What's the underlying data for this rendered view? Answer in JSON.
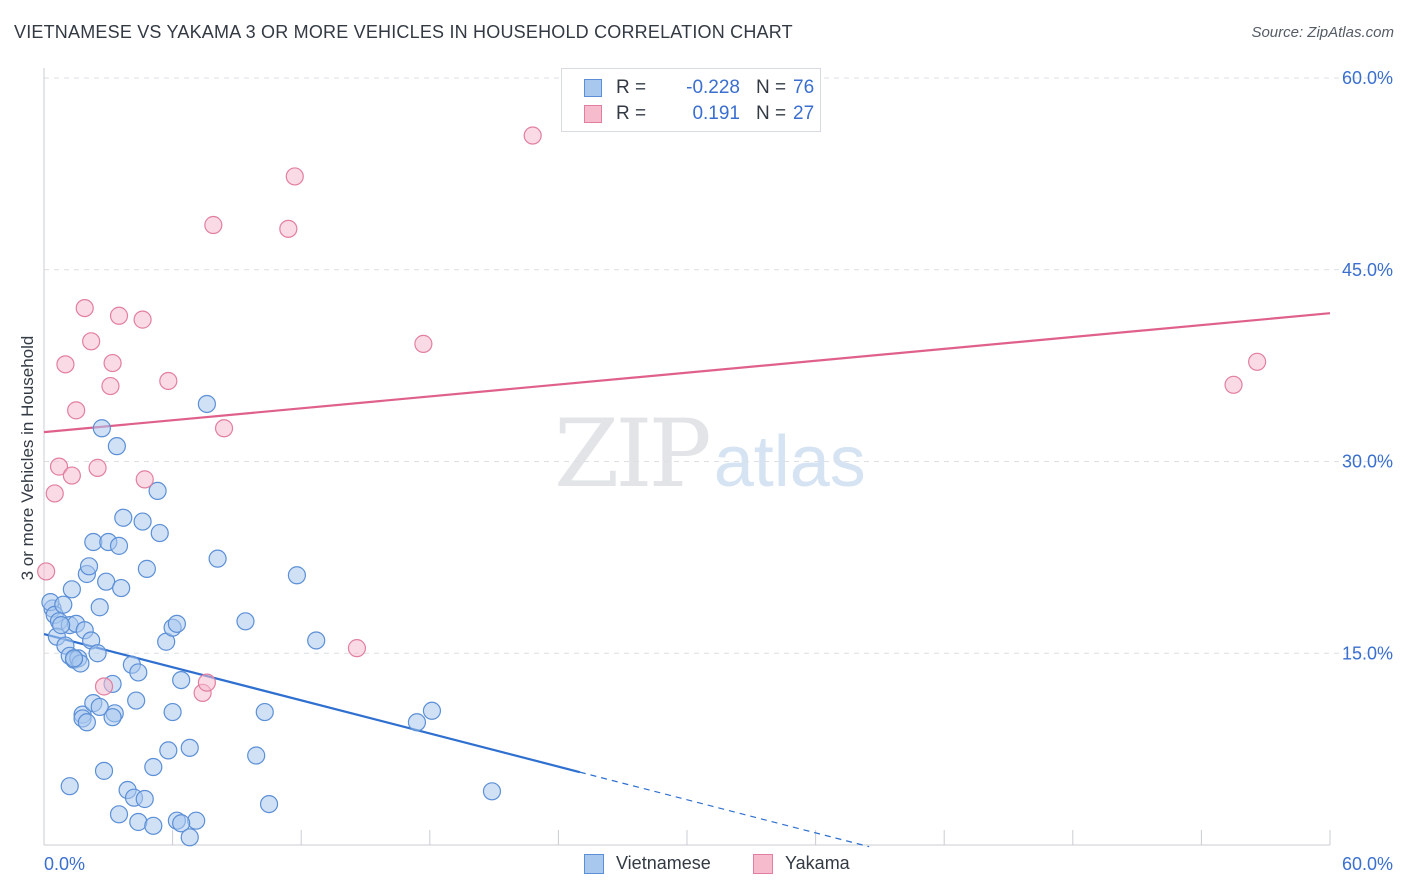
{
  "header": {
    "title": "VIETNAMESE VS YAKAMA 3 OR MORE VEHICLES IN HOUSEHOLD CORRELATION CHART",
    "source": "Source: ZipAtlas.com"
  },
  "watermark": {
    "zip": "ZIP",
    "atlas": "atlas"
  },
  "stats": {
    "r_label": "R =",
    "n_label": "N =",
    "rows": [
      {
        "series": "Vietnamese",
        "r": "-0.228",
        "n": "76"
      },
      {
        "series": "Yakama",
        "r": "0.191",
        "n": "27"
      }
    ]
  },
  "legend": {
    "items": [
      "Vietnamese",
      "Yakama"
    ]
  },
  "colors": {
    "vietnamese_fill": "#a9c8ee",
    "vietnamese_stroke": "#5b8fd6",
    "vietnamese_line": "#2f6fcf",
    "yakama_fill": "#f6bccd",
    "yakama_stroke": "#e27fa0",
    "yakama_line": "#e0608c",
    "tick_label": "#3a6fcf",
    "grid": "#dcdfe4"
  },
  "chart_data": {
    "type": "scatter",
    "title": "VIETNAMESE VS YAKAMA 3 OR MORE VEHICLES IN HOUSEHOLD CORRELATION CHART",
    "xlabel": "",
    "ylabel": "3 or more Vehicles in Household",
    "xlim": [
      0,
      60
    ],
    "ylim": [
      0,
      60
    ],
    "x_tick_labels": [
      "0.0%",
      "60.0%"
    ],
    "y_ticks": [
      15,
      30,
      45,
      60
    ],
    "y_tick_labels": [
      "15.0%",
      "30.0%",
      "45.0%",
      "60.0%"
    ],
    "grid": true,
    "legend_position": "bottom-center",
    "series": [
      {
        "name": "Vietnamese",
        "r": -0.228,
        "n": 76,
        "trend": {
          "x0": 0,
          "y0": 16.5,
          "x1": 25,
          "y1": 5.7,
          "dash_to_x": 38.5
        },
        "points": [
          [
            0.4,
            18.5
          ],
          [
            0.3,
            19.0
          ],
          [
            0.5,
            18.0
          ],
          [
            0.7,
            17.5
          ],
          [
            0.9,
            18.8
          ],
          [
            0.6,
            16.3
          ],
          [
            1.0,
            15.6
          ],
          [
            1.2,
            17.2
          ],
          [
            1.3,
            20.0
          ],
          [
            1.2,
            14.8
          ],
          [
            1.4,
            14.5
          ],
          [
            1.6,
            14.6
          ],
          [
            1.7,
            14.2
          ],
          [
            1.5,
            17.3
          ],
          [
            1.9,
            16.8
          ],
          [
            2.0,
            21.2
          ],
          [
            2.1,
            21.8
          ],
          [
            2.2,
            16.0
          ],
          [
            2.3,
            23.7
          ],
          [
            2.5,
            15.0
          ],
          [
            2.6,
            18.6
          ],
          [
            2.7,
            32.6
          ],
          [
            2.9,
            20.6
          ],
          [
            3.0,
            23.7
          ],
          [
            3.2,
            12.6
          ],
          [
            3.3,
            10.3
          ],
          [
            3.4,
            31.2
          ],
          [
            3.5,
            23.4
          ],
          [
            3.6,
            20.1
          ],
          [
            3.7,
            25.6
          ],
          [
            4.1,
            14.1
          ],
          [
            4.3,
            11.3
          ],
          [
            4.4,
            13.5
          ],
          [
            4.6,
            25.3
          ],
          [
            4.8,
            21.6
          ],
          [
            5.3,
            27.7
          ],
          [
            5.4,
            24.4
          ],
          [
            5.7,
            15.9
          ],
          [
            6.0,
            17.0
          ],
          [
            6.2,
            17.3
          ],
          [
            6.4,
            12.9
          ],
          [
            6.8,
            7.6
          ],
          [
            7.1,
            1.9
          ],
          [
            7.6,
            34.5
          ],
          [
            8.1,
            22.4
          ],
          [
            9.4,
            17.5
          ],
          [
            10.3,
            10.4
          ],
          [
            10.5,
            3.2
          ],
          [
            11.8,
            21.1
          ],
          [
            12.7,
            16.0
          ],
          [
            17.4,
            9.6
          ],
          [
            18.1,
            10.5
          ],
          [
            20.9,
            4.2
          ],
          [
            1.2,
            4.6
          ],
          [
            1.8,
            10.2
          ],
          [
            1.8,
            9.9
          ],
          [
            2.0,
            9.6
          ],
          [
            2.3,
            11.1
          ],
          [
            2.6,
            10.8
          ],
          [
            2.8,
            5.8
          ],
          [
            3.2,
            10.0
          ],
          [
            3.5,
            2.4
          ],
          [
            3.9,
            4.3
          ],
          [
            4.2,
            3.7
          ],
          [
            4.7,
            3.6
          ],
          [
            4.4,
            1.8
          ],
          [
            5.1,
            1.5
          ],
          [
            5.1,
            6.1
          ],
          [
            5.8,
            7.4
          ],
          [
            6.0,
            10.4
          ],
          [
            6.2,
            1.9
          ],
          [
            6.4,
            1.7
          ],
          [
            6.8,
            0.6
          ],
          [
            9.9,
            7.0
          ],
          [
            0.8,
            17.2
          ],
          [
            1.4,
            14.6
          ]
        ]
      },
      {
        "name": "Yakama",
        "r": 0.191,
        "n": 27,
        "trend": {
          "x0": 0,
          "y0": 32.3,
          "x1": 60,
          "y1": 41.6
        },
        "points": [
          [
            0.1,
            21.4
          ],
          [
            0.5,
            27.5
          ],
          [
            0.7,
            29.6
          ],
          [
            1.0,
            37.6
          ],
          [
            1.3,
            28.9
          ],
          [
            1.5,
            34.0
          ],
          [
            1.9,
            42.0
          ],
          [
            2.2,
            39.4
          ],
          [
            2.5,
            29.5
          ],
          [
            2.8,
            12.4
          ],
          [
            3.1,
            35.9
          ],
          [
            3.2,
            37.7
          ],
          [
            3.5,
            41.4
          ],
          [
            4.6,
            41.1
          ],
          [
            4.7,
            28.6
          ],
          [
            5.8,
            36.3
          ],
          [
            7.4,
            11.9
          ],
          [
            7.6,
            12.7
          ],
          [
            7.9,
            48.5
          ],
          [
            8.4,
            32.6
          ],
          [
            11.4,
            48.2
          ],
          [
            11.7,
            52.3
          ],
          [
            14.6,
            15.4
          ],
          [
            17.7,
            39.2
          ],
          [
            22.8,
            55.5
          ],
          [
            55.5,
            36.0
          ],
          [
            56.6,
            37.8
          ]
        ]
      }
    ]
  }
}
